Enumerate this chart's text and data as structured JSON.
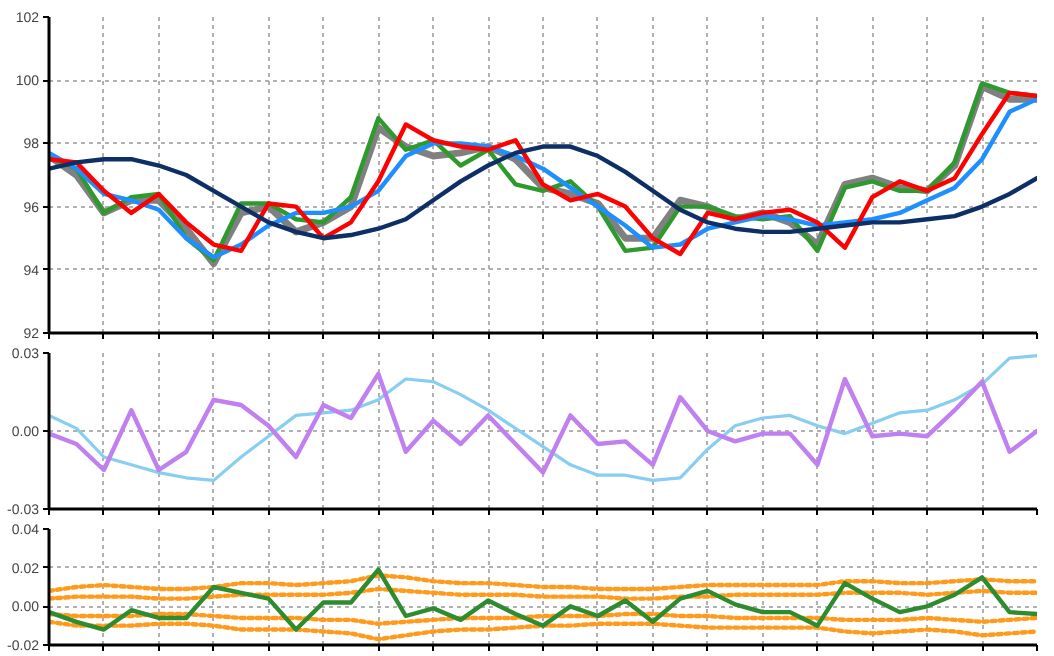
{
  "chart_data": [
    {
      "type": "line",
      "categories": [
        null,
        null,
        null,
        null,
        null,
        null,
        null,
        null,
        null,
        null,
        null,
        null,
        null,
        null,
        null,
        null,
        null,
        null,
        null,
        null,
        null,
        null,
        null,
        null,
        null,
        null,
        null,
        null,
        null,
        null,
        null,
        null,
        null,
        null,
        null,
        null,
        null
      ],
      "ylim": [
        92,
        102
      ],
      "yticks": [
        92,
        94,
        96,
        98,
        100,
        102
      ],
      "grid": true,
      "tick_labels": "y",
      "series": [
        {
          "color": "#808080",
          "values": [
            97.6,
            97.0,
            95.8,
            96.2,
            96.2,
            95.3,
            94.2,
            95.8,
            96.0,
            95.2,
            95.5,
            96.0,
            98.5,
            97.9,
            97.6,
            97.7,
            97.9,
            97.5,
            96.6,
            96.4,
            96.1,
            95.0,
            95.0,
            96.2,
            96.0,
            95.6,
            95.8,
            95.5,
            94.8,
            96.7,
            96.9,
            96.6,
            96.5,
            97.3,
            99.8,
            99.4,
            99.4
          ]
        },
        {
          "color": "#2e9a2e",
          "values": [
            97.6,
            97.2,
            95.8,
            96.3,
            96.4,
            95.0,
            94.3,
            96.1,
            96.1,
            95.6,
            95.5,
            96.3,
            98.8,
            97.8,
            98.1,
            97.3,
            97.8,
            96.7,
            96.5,
            96.8,
            96.0,
            94.6,
            94.7,
            96.0,
            96.0,
            95.7,
            95.6,
            95.7,
            94.6,
            96.6,
            96.8,
            96.5,
            96.5,
            97.4,
            99.9,
            99.6,
            99.5
          ]
        },
        {
          "color": "#1f8fff",
          "values": [
            97.7,
            97.2,
            96.4,
            96.2,
            95.9,
            95.0,
            94.4,
            94.8,
            95.4,
            95.8,
            95.8,
            96.0,
            96.5,
            97.6,
            98.0,
            98.0,
            97.9,
            97.6,
            97.2,
            96.6,
            96.0,
            95.4,
            94.7,
            94.8,
            95.3,
            95.5,
            95.7,
            95.6,
            95.4,
            95.5,
            95.6,
            95.8,
            96.2,
            96.6,
            97.5,
            99.0,
            99.4
          ]
        },
        {
          "color": "#ff0000",
          "values": [
            97.5,
            97.4,
            96.5,
            95.8,
            96.4,
            95.5,
            94.8,
            94.6,
            96.1,
            96.0,
            95.0,
            95.5,
            96.8,
            98.6,
            98.1,
            97.9,
            97.8,
            98.1,
            96.7,
            96.2,
            96.4,
            96.0,
            95.0,
            94.5,
            95.8,
            95.6,
            95.8,
            95.9,
            95.5,
            94.7,
            96.3,
            96.8,
            96.5,
            96.9,
            98.3,
            99.6,
            99.5
          ]
        },
        {
          "color": "#0d2f66",
          "values": [
            97.2,
            97.4,
            97.5,
            97.5,
            97.3,
            97.0,
            96.5,
            96.0,
            95.5,
            95.2,
            95.0,
            95.1,
            95.3,
            95.6,
            96.2,
            96.8,
            97.3,
            97.7,
            97.9,
            97.9,
            97.6,
            97.1,
            96.5,
            95.9,
            95.5,
            95.3,
            95.2,
            95.2,
            95.3,
            95.4,
            95.5,
            95.5,
            95.6,
            95.7,
            96.0,
            96.4,
            96.9
          ]
        }
      ]
    },
    {
      "type": "line",
      "categories": [
        null,
        null,
        null,
        null,
        null,
        null,
        null,
        null,
        null,
        null,
        null,
        null,
        null,
        null,
        null,
        null,
        null,
        null,
        null,
        null,
        null,
        null,
        null,
        null,
        null,
        null,
        null,
        null,
        null,
        null,
        null,
        null,
        null,
        null,
        null,
        null,
        null
      ],
      "ylim": [
        -0.03,
        0.03
      ],
      "yticks": [
        -0.03,
        {
          "value": 0,
          "label": "0.00"
        },
        0.03
      ],
      "grid": true,
      "tick_labels": "y",
      "series": [
        {
          "color": "#87cef0",
          "values": [
            0.006,
            0.001,
            -0.01,
            -0.013,
            -0.016,
            -0.018,
            -0.019,
            -0.01,
            -0.002,
            0.006,
            0.007,
            0.008,
            0.012,
            0.02,
            0.019,
            0.014,
            0.008,
            0.001,
            -0.006,
            -0.013,
            -0.017,
            -0.017,
            -0.019,
            -0.018,
            -0.007,
            0.002,
            0.005,
            0.006,
            0.002,
            -0.001,
            0.003,
            0.007,
            0.008,
            0.012,
            0.018,
            0.028,
            0.029
          ]
        },
        {
          "color": "#c080f0",
          "values": [
            -0.001,
            -0.005,
            -0.015,
            0.008,
            -0.015,
            -0.008,
            0.012,
            0.01,
            0.002,
            -0.01,
            0.01,
            0.005,
            0.022,
            -0.008,
            0.004,
            -0.005,
            0.006,
            -0.005,
            -0.016,
            0.006,
            -0.005,
            -0.004,
            -0.013,
            0.013,
            0.0,
            -0.004,
            -0.001,
            -0.001,
            -0.013,
            0.02,
            -0.002,
            -0.001,
            -0.002,
            0.008,
            0.019,
            -0.008,
            0.0
          ]
        }
      ]
    },
    {
      "type": "line",
      "categories": [
        null,
        null,
        null,
        null,
        null,
        null,
        null,
        null,
        null,
        null,
        null,
        null,
        null,
        null,
        null,
        null,
        null,
        null,
        null,
        null,
        null,
        null,
        null,
        null,
        null,
        null,
        null,
        null,
        null,
        null,
        null,
        null,
        null,
        null,
        null,
        null,
        null
      ],
      "ylim": [
        -0.02,
        0.04
      ],
      "yticks": [
        -0.02,
        {
          "value": 0,
          "label": "0.00"
        },
        0.02,
        0.04
      ],
      "grid": true,
      "tick_labels": "y",
      "series": [
        {
          "color": "#ff9a1a",
          "line_style": "dotted",
          "values": [
            0.008,
            0.01,
            0.011,
            0.01,
            0.009,
            0.009,
            0.01,
            0.012,
            0.012,
            0.011,
            0.012,
            0.013,
            0.016,
            0.015,
            0.013,
            0.012,
            0.012,
            0.011,
            0.01,
            0.01,
            0.009,
            0.009,
            0.009,
            0.01,
            0.011,
            0.011,
            0.011,
            0.011,
            0.011,
            0.013,
            0.013,
            0.012,
            0.012,
            0.013,
            0.014,
            0.013,
            0.013
          ]
        },
        {
          "color": "#ff9a1a",
          "line_style": "dotted",
          "values": [
            0.004,
            0.005,
            0.005,
            0.005,
            0.004,
            0.004,
            0.005,
            0.006,
            0.006,
            0.006,
            0.006,
            0.007,
            0.009,
            0.008,
            0.007,
            0.006,
            0.006,
            0.006,
            0.005,
            0.005,
            0.005,
            0.004,
            0.004,
            0.005,
            0.005,
            0.006,
            0.006,
            0.006,
            0.006,
            0.007,
            0.007,
            0.007,
            0.006,
            0.007,
            0.008,
            0.007,
            0.007
          ]
        },
        {
          "color": "#ff9a1a",
          "line_style": "dotted",
          "values": [
            -0.004,
            -0.005,
            -0.005,
            -0.005,
            -0.004,
            -0.004,
            -0.005,
            -0.006,
            -0.006,
            -0.006,
            -0.007,
            -0.007,
            -0.009,
            -0.008,
            -0.007,
            -0.006,
            -0.006,
            -0.006,
            -0.005,
            -0.005,
            -0.005,
            -0.004,
            -0.004,
            -0.005,
            -0.005,
            -0.006,
            -0.006,
            -0.006,
            -0.006,
            -0.007,
            -0.007,
            -0.007,
            -0.006,
            -0.007,
            -0.008,
            -0.007,
            -0.006
          ]
        },
        {
          "color": "#ff9a1a",
          "line_style": "dotted",
          "values": [
            -0.008,
            -0.01,
            -0.01,
            -0.01,
            -0.009,
            -0.009,
            -0.01,
            -0.012,
            -0.012,
            -0.012,
            -0.013,
            -0.014,
            -0.017,
            -0.015,
            -0.013,
            -0.012,
            -0.012,
            -0.011,
            -0.01,
            -0.01,
            -0.009,
            -0.009,
            -0.009,
            -0.01,
            -0.011,
            -0.011,
            -0.011,
            -0.011,
            -0.011,
            -0.013,
            -0.014,
            -0.013,
            -0.012,
            -0.013,
            -0.015,
            -0.014,
            -0.013
          ]
        },
        {
          "color": "#2e8b2e",
          "values": [
            -0.003,
            -0.008,
            -0.012,
            -0.002,
            -0.006,
            -0.006,
            0.01,
            0.007,
            0.004,
            -0.012,
            0.002,
            0.002,
            0.019,
            -0.005,
            -0.001,
            -0.007,
            0.003,
            -0.004,
            -0.01,
            0.0,
            -0.005,
            0.003,
            -0.008,
            0.004,
            0.008,
            0.001,
            -0.003,
            -0.003,
            -0.01,
            0.012,
            0.004,
            -0.003,
            0.0,
            0.006,
            0.015,
            -0.003,
            -0.004
          ]
        }
      ]
    }
  ]
}
